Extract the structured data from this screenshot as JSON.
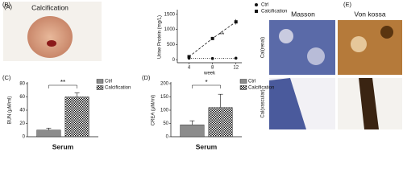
{
  "panel_a": {
    "label": "(A)",
    "caption": "Calcification"
  },
  "panel_e": {
    "label": "(E)",
    "columns": [
      "Masson",
      "Von kossa"
    ],
    "rows": [
      "Cal(renal)",
      "Cal(vascular)"
    ]
  },
  "chart_data": [
    {
      "type": "line",
      "panel_label": "(B)",
      "y_label": "Urine Protein (mg/L)",
      "x_label": "week",
      "x": [
        4,
        8,
        12
      ],
      "xlim": [
        2,
        13
      ],
      "xticks": [
        4,
        8,
        12
      ],
      "ylim": [
        -100,
        1600
      ],
      "yticks": [
        0,
        500,
        1000,
        1500
      ],
      "annotation": "**",
      "series": [
        {
          "name": "Ctrl",
          "color": "#111111",
          "marker": "circle",
          "values": [
            50,
            40,
            50
          ]
        },
        {
          "name": "Calcification",
          "color": "#111111",
          "marker": "square",
          "values": [
            100,
            700,
            1250
          ],
          "errors": [
            20,
            40,
            90
          ]
        }
      ]
    },
    {
      "type": "bar",
      "panel_label": "(C)",
      "y_label": "BUN (μM/ml)",
      "categories": [
        "Serum"
      ],
      "ylim": [
        0,
        80
      ],
      "yticks": [
        0,
        20,
        40,
        60,
        80
      ],
      "annotation": "**",
      "series": [
        {
          "name": "Ctrl",
          "color": "#8c8c8c",
          "values": [
            10
          ],
          "errors": [
            3
          ]
        },
        {
          "name": "Calcification",
          "color": "#111111",
          "pattern": "checker",
          "values": [
            60
          ],
          "errors": [
            6
          ]
        }
      ]
    },
    {
      "type": "bar",
      "panel_label": "(D)",
      "y_label": "CREA (μM/ml)",
      "categories": [
        "Serum"
      ],
      "ylim": [
        0,
        200
      ],
      "yticks": [
        0,
        50,
        100,
        150,
        200
      ],
      "annotation": "*",
      "series": [
        {
          "name": "Ctrl",
          "color": "#8c8c8c",
          "values": [
            45
          ],
          "errors": [
            15
          ]
        },
        {
          "name": "Calcification",
          "color": "#111111",
          "pattern": "checker",
          "values": [
            110
          ],
          "errors": [
            50
          ]
        }
      ]
    }
  ]
}
